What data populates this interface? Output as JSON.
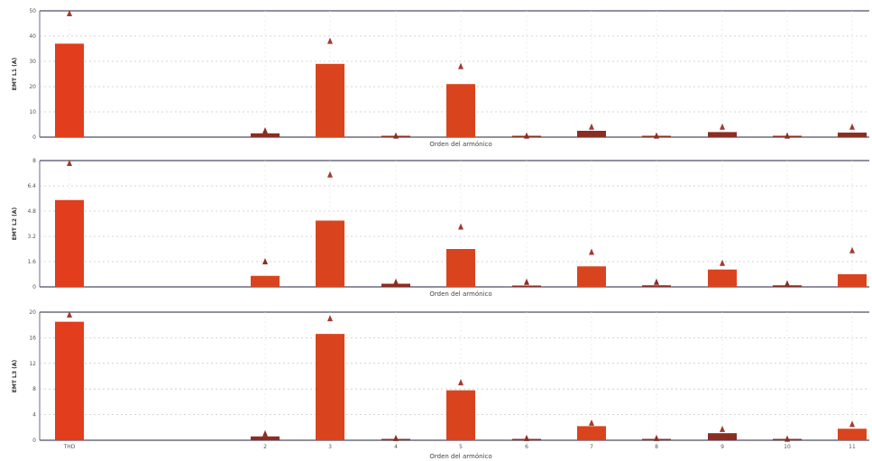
{
  "colors": {
    "bar": "#e23d1c",
    "bar_dark": "#d9441e",
    "limit": "#a33b2b",
    "small": "#8b2d22",
    "axis": "#6b6b80",
    "grid": "#c8c8c8"
  },
  "chart_data": [
    {
      "type": "bar",
      "ylabel": "EMT L1 (A)",
      "xlabel": "Orden del armónico",
      "ylim": [
        0,
        50
      ],
      "yticks": [
        "0",
        "10",
        "20",
        "30",
        "40",
        "50"
      ],
      "categories": [
        "THD",
        "2",
        "3",
        "4",
        "5",
        "6",
        "7",
        "8",
        "9",
        "10",
        "11"
      ],
      "values": [
        37,
        1.5,
        29,
        0.3,
        21,
        0.3,
        2.5,
        0.4,
        2.0,
        0.3,
        1.8
      ],
      "limits": [
        50,
        2.5,
        38,
        0.5,
        28,
        0.5,
        4,
        0.5,
        4,
        0.5,
        4
      ],
      "grid": true
    },
    {
      "type": "bar",
      "ylabel": "EMT L2 (A)",
      "xlabel": "Orden del armónico",
      "ylim": [
        0,
        8
      ],
      "yticks": [
        "0",
        "1.6",
        "3.2",
        "4.8",
        "6.4",
        "8"
      ],
      "categories": [
        "THD",
        "2",
        "3",
        "4",
        "5",
        "6",
        "7",
        "8",
        "9",
        "10",
        "11"
      ],
      "values": [
        5.5,
        0.7,
        4.2,
        0.2,
        2.4,
        0.05,
        1.3,
        0.1,
        1.1,
        0.1,
        0.8
      ],
      "limits": [
        8,
        1.6,
        7.1,
        0.3,
        3.8,
        0.3,
        2.2,
        0.3,
        1.5,
        0.2,
        2.3
      ],
      "grid": true
    },
    {
      "type": "bar",
      "ylabel": "EMT L3 (A)",
      "xlabel": "Orden del armónico",
      "ylim": [
        0,
        20
      ],
      "yticks": [
        "0",
        "4",
        "8",
        "12",
        "16",
        "20"
      ],
      "categories": [
        "THD",
        "2",
        "3",
        "4",
        "5",
        "6",
        "7",
        "8",
        "9",
        "10",
        "11"
      ],
      "values": [
        18.5,
        0.6,
        16.6,
        0.1,
        7.8,
        0.1,
        2.2,
        0.1,
        1.1,
        0.1,
        1.8
      ],
      "limits": [
        20,
        1,
        19,
        0.3,
        9,
        0.3,
        2.7,
        0.3,
        1.7,
        0.2,
        2.5
      ],
      "grid": true
    }
  ]
}
